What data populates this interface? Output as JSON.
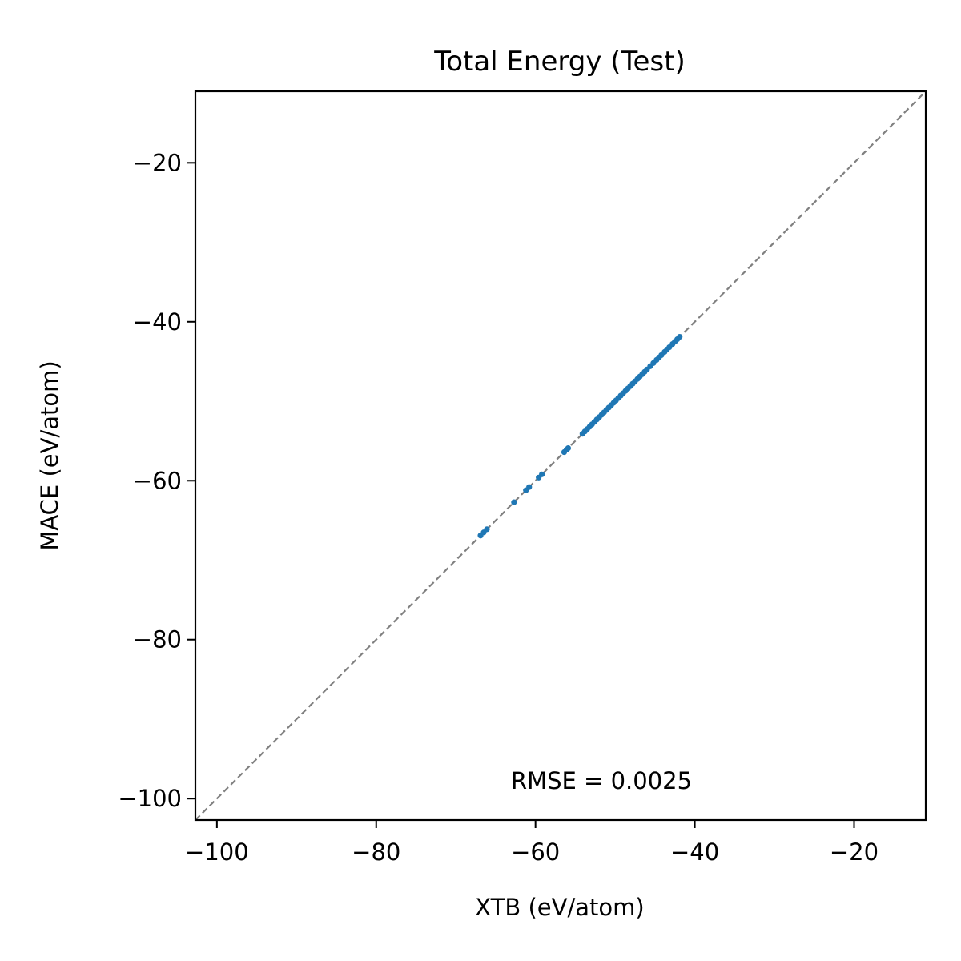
{
  "chart_data": {
    "type": "scatter",
    "title": "Total Energy (Test)",
    "xlabel": "XTB (eV/atom)",
    "ylabel": "MACE (eV/atom)",
    "xlim": [
      -102.7,
      -11.0
    ],
    "ylim": [
      -102.7,
      -11.0
    ],
    "x_ticks": [
      -100,
      -80,
      -60,
      -40,
      -20
    ],
    "y_ticks": [
      -100,
      -80,
      -60,
      -40,
      -20
    ],
    "x_tick_labels": [
      "−100",
      "−80",
      "−60",
      "−40",
      "−20"
    ],
    "y_tick_labels": [
      "−100",
      "−80",
      "−60",
      "−40",
      "−20"
    ],
    "annotation": "RMSE = 0.0025",
    "grid": false,
    "reference_line": "y = x",
    "colors": {
      "points": "#1f77b4",
      "reference_line": "#808080",
      "axes": "#000000"
    },
    "series": [
      {
        "x": [
          -66.9,
          -66.5,
          -66.1,
          -62.7,
          -61.2,
          -60.8,
          -59.6,
          -59.2,
          -56.4,
          -56.1,
          -55.9,
          -54.1,
          -53.8,
          -53.5,
          -53.2,
          -52.9,
          -52.6,
          -52.3,
          -52.0,
          -51.7,
          -51.4,
          -51.1,
          -50.8,
          -50.5,
          -50.2,
          -49.9,
          -49.6,
          -49.3,
          -49.0,
          -48.7,
          -48.4,
          -48.1,
          -47.8,
          -47.5,
          -47.2,
          -46.9,
          -46.6,
          -46.3,
          -46.0,
          -45.6,
          -45.2,
          -44.8,
          -44.5,
          -44.2,
          -43.8,
          -43.5,
          -43.2,
          -42.8,
          -42.5,
          -42.2,
          -41.9
        ],
        "y": [
          -66.9,
          -66.5,
          -66.1,
          -62.7,
          -61.2,
          -60.8,
          -59.6,
          -59.2,
          -56.4,
          -56.1,
          -55.9,
          -54.1,
          -53.8,
          -53.5,
          -53.2,
          -52.9,
          -52.6,
          -52.3,
          -52.0,
          -51.7,
          -51.4,
          -51.1,
          -50.8,
          -50.5,
          -50.2,
          -49.9,
          -49.6,
          -49.3,
          -49.0,
          -48.7,
          -48.4,
          -48.1,
          -47.8,
          -47.5,
          -47.2,
          -46.9,
          -46.6,
          -46.3,
          -46.0,
          -45.6,
          -45.2,
          -44.8,
          -44.5,
          -44.2,
          -43.8,
          -43.5,
          -43.2,
          -42.8,
          -42.5,
          -42.2,
          -41.9
        ]
      }
    ]
  }
}
